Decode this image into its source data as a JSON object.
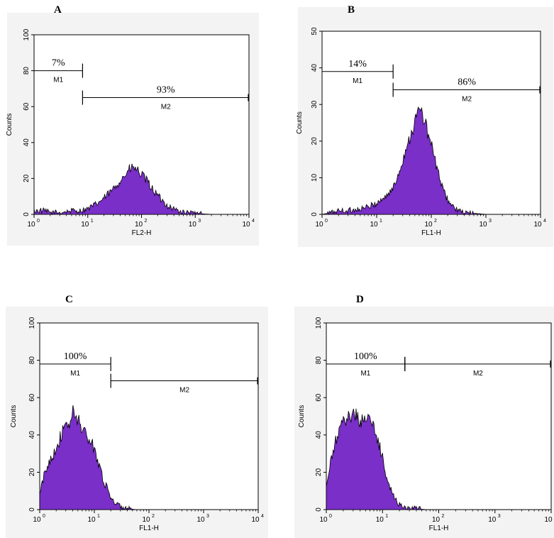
{
  "chart_data": [
    {
      "panel": "A",
      "type": "area",
      "xlabel": "FL2-H",
      "ylabel": "Counts",
      "x_scale": "log",
      "xlim": [
        1,
        10000
      ],
      "ylim": [
        0,
        100
      ],
      "yticks": [
        0,
        20,
        40,
        60,
        80,
        100
      ],
      "fill_color": "#7a2fc8",
      "series": [
        {
          "x": [
            1,
            1.5,
            2,
            3,
            5,
            7,
            10,
            15,
            20,
            30,
            40,
            50,
            60,
            70,
            80,
            100,
            130,
            170,
            220,
            300,
            400,
            600,
            1000,
            2000,
            10000
          ],
          "values": [
            2,
            2,
            1,
            1,
            2,
            2,
            3,
            6,
            9,
            14,
            19,
            22,
            25,
            26,
            25,
            22,
            18,
            13,
            9,
            5,
            3,
            1,
            0.5,
            0,
            0
          ]
        }
      ],
      "gates": [
        {
          "name": "M1",
          "x_start": 1,
          "x_end": 8,
          "y": 80,
          "percent": "7%"
        },
        {
          "name": "M2",
          "x_start": 8,
          "x_end": 10000,
          "y": 65,
          "percent": "93%"
        }
      ]
    },
    {
      "panel": "B",
      "type": "area",
      "xlabel": "FL1-H",
      "ylabel": "Counts",
      "x_scale": "log",
      "xlim": [
        1,
        10000
      ],
      "ylim": [
        0,
        50
      ],
      "yticks": [
        0,
        10,
        20,
        30,
        40,
        50
      ],
      "fill_color": "#7a2fc8",
      "series": [
        {
          "x": [
            1,
            1.5,
            2,
            3,
            5,
            7,
            10,
            15,
            20,
            25,
            30,
            35,
            40,
            45,
            50,
            55,
            60,
            70,
            80,
            100,
            130,
            170,
            220,
            300,
            400,
            1000,
            10000
          ],
          "values": [
            0,
            0.5,
            1,
            1,
            1.5,
            2,
            3,
            5,
            7,
            11,
            15,
            18,
            21,
            23,
            25,
            27,
            29,
            27,
            24,
            19,
            12,
            6,
            3,
            1,
            0.5,
            0,
            0
          ]
        }
      ],
      "gates": [
        {
          "name": "M1",
          "x_start": 1,
          "x_end": 20,
          "y": 39,
          "percent": "14%"
        },
        {
          "name": "M2",
          "x_start": 20,
          "x_end": 10000,
          "y": 34,
          "percent": "86%"
        }
      ]
    },
    {
      "panel": "C",
      "type": "area",
      "xlabel": "FL1-H",
      "ylabel": "Counts",
      "x_scale": "log",
      "xlim": [
        1,
        10000
      ],
      "ylim": [
        0,
        100
      ],
      "yticks": [
        0,
        20,
        40,
        60,
        80,
        100
      ],
      "fill_color": "#7a2fc8",
      "series": [
        {
          "x": [
            1,
            1.2,
            1.5,
            2,
            2.5,
            3,
            3.5,
            4,
            5,
            6,
            7,
            8,
            10,
            12,
            15,
            20,
            25,
            30,
            40,
            60,
            100,
            10000
          ],
          "values": [
            8,
            18,
            26,
            33,
            40,
            44,
            46,
            52,
            48,
            44,
            40,
            37,
            33,
            25,
            15,
            7,
            3,
            1.5,
            0.5,
            0,
            0,
            0
          ]
        }
      ],
      "gates": [
        {
          "name": "M1",
          "x_start": 1,
          "x_end": 20,
          "y": 78,
          "percent": "100%"
        },
        {
          "name": "M2",
          "x_start": 20,
          "x_end": 10000,
          "y": 69,
          "percent": ""
        }
      ]
    },
    {
      "panel": "D",
      "type": "area",
      "xlabel": "FL1-H",
      "ylabel": "Counts",
      "x_scale": "log",
      "xlim": [
        1,
        10000
      ],
      "ylim": [
        0,
        100
      ],
      "yticks": [
        0,
        20,
        40,
        60,
        80,
        100
      ],
      "fill_color": "#7a2fc8",
      "series": [
        {
          "x": [
            1,
            1.2,
            1.5,
            2,
            2.5,
            3,
            3.5,
            4,
            5,
            6,
            7,
            8,
            10,
            12,
            15,
            20,
            25,
            30,
            40,
            60,
            100,
            10000
          ],
          "values": [
            12,
            25,
            38,
            46,
            50,
            52,
            50,
            47,
            50,
            48,
            44,
            38,
            28,
            17,
            8,
            3,
            1,
            0.5,
            0.5,
            0,
            0,
            0
          ]
        }
      ],
      "gates": [
        {
          "name": "M1",
          "x_start": 1,
          "x_end": 25,
          "y": 78,
          "percent": "100%"
        },
        {
          "name": "M2",
          "x_start": 25,
          "x_end": 10000,
          "y": 78,
          "percent": ""
        }
      ]
    }
  ]
}
